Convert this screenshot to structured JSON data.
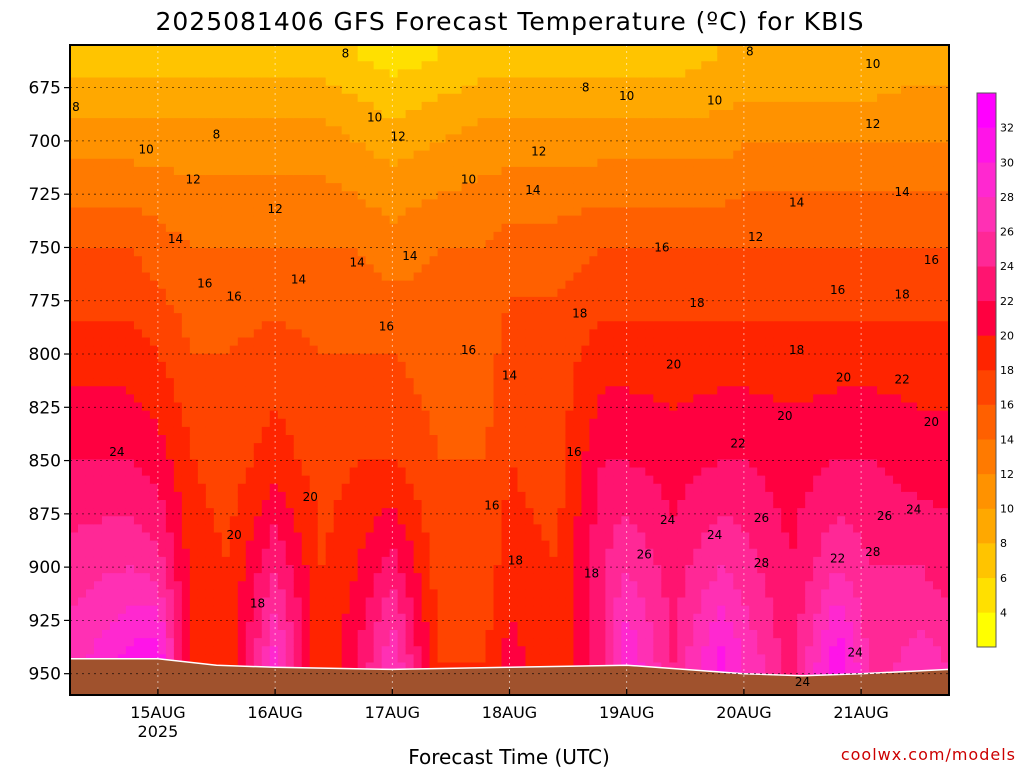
{
  "chart_data": {
    "type": "heatmap",
    "title": "2025081406 GFS Forecast Temperature (ºC) for KBIS",
    "xlabel": "Forecast Time (UTC)",
    "ylabel": "",
    "credit": "coolwx.com/models",
    "x_ticks": [
      {
        "label": "15AUG",
        "sub": "2025",
        "day": 1
      },
      {
        "label": "16AUG",
        "sub": "",
        "day": 2
      },
      {
        "label": "17AUG",
        "sub": "",
        "day": 3
      },
      {
        "label": "18AUG",
        "sub": "",
        "day": 4
      },
      {
        "label": "19AUG",
        "sub": "",
        "day": 5
      },
      {
        "label": "20AUG",
        "sub": "",
        "day": 6
      },
      {
        "label": "21AUG",
        "sub": "",
        "day": 7
      }
    ],
    "xlim_days": [
      0.25,
      7.75
    ],
    "y_ticks": [
      "675",
      "700",
      "725",
      "750",
      "775",
      "800",
      "825",
      "850",
      "875",
      "900",
      "925",
      "950"
    ],
    "ylim_hpa": [
      655,
      960
    ],
    "y_reversed": true,
    "colorbar": {
      "min": 2,
      "max": 34,
      "step": 2,
      "labels": [
        "4",
        "6",
        "8",
        "10",
        "12",
        "14",
        "16",
        "18",
        "20",
        "22",
        "24",
        "26",
        "28",
        "30",
        "32"
      ],
      "colors": [
        "#ffff00",
        "#ffe000",
        "#ffc400",
        "#ffa800",
        "#ff9200",
        "#ff7a00",
        "#ff6000",
        "#ff4400",
        "#ff2400",
        "#ff0040",
        "#ff1470",
        "#ff2896",
        "#ff30b4",
        "#ff28d0",
        "#ff14e8",
        "#ff00ff"
      ]
    },
    "ground_color": "#a0522d",
    "grid": true,
    "contour_interval": 2,
    "temperature_profiles": [
      {
        "day": 0.25,
        "t": [
          {
            "p": 660,
            "v": 7
          },
          {
            "p": 700,
            "v": 11
          },
          {
            "p": 750,
            "v": 16
          },
          {
            "p": 800,
            "v": 19
          },
          {
            "p": 850,
            "v": 22
          },
          {
            "p": 900,
            "v": 25
          },
          {
            "p": 945,
            "v": 27
          }
        ]
      },
      {
        "day": 0.75,
        "t": [
          {
            "p": 660,
            "v": 7
          },
          {
            "p": 700,
            "v": 11
          },
          {
            "p": 750,
            "v": 16
          },
          {
            "p": 800,
            "v": 19
          },
          {
            "p": 850,
            "v": 22
          },
          {
            "p": 900,
            "v": 26
          },
          {
            "p": 945,
            "v": 31
          }
        ]
      },
      {
        "day": 1.0,
        "t": [
          {
            "p": 660,
            "v": 7
          },
          {
            "p": 700,
            "v": 11
          },
          {
            "p": 750,
            "v": 15
          },
          {
            "p": 800,
            "v": 18
          },
          {
            "p": 850,
            "v": 21
          },
          {
            "p": 900,
            "v": 25
          },
          {
            "p": 945,
            "v": 32
          }
        ]
      },
      {
        "day": 1.3,
        "t": [
          {
            "p": 660,
            "v": 7
          },
          {
            "p": 700,
            "v": 11
          },
          {
            "p": 750,
            "v": 14
          },
          {
            "p": 800,
            "v": 16
          },
          {
            "p": 850,
            "v": 18
          },
          {
            "p": 900,
            "v": 19
          },
          {
            "p": 945,
            "v": 18
          }
        ]
      },
      {
        "day": 1.6,
        "t": [
          {
            "p": 660,
            "v": 7
          },
          {
            "p": 700,
            "v": 11
          },
          {
            "p": 750,
            "v": 14
          },
          {
            "p": 800,
            "v": 16
          },
          {
            "p": 850,
            "v": 17
          },
          {
            "p": 900,
            "v": 18
          },
          {
            "p": 945,
            "v": 18
          }
        ]
      },
      {
        "day": 2.0,
        "t": [
          {
            "p": 660,
            "v": 7
          },
          {
            "p": 700,
            "v": 11
          },
          {
            "p": 750,
            "v": 14
          },
          {
            "p": 800,
            "v": 17
          },
          {
            "p": 850,
            "v": 19
          },
          {
            "p": 900,
            "v": 24
          },
          {
            "p": 945,
            "v": 29
          }
        ]
      },
      {
        "day": 2.4,
        "t": [
          {
            "p": 660,
            "v": 7
          },
          {
            "p": 700,
            "v": 11
          },
          {
            "p": 750,
            "v": 14
          },
          {
            "p": 800,
            "v": 16
          },
          {
            "p": 850,
            "v": 17
          },
          {
            "p": 900,
            "v": 18
          },
          {
            "p": 945,
            "v": 18
          }
        ]
      },
      {
        "day": 2.7,
        "t": [
          {
            "p": 660,
            "v": 6
          },
          {
            "p": 700,
            "v": 10
          },
          {
            "p": 750,
            "v": 14
          },
          {
            "p": 800,
            "v": 16
          },
          {
            "p": 850,
            "v": 18
          },
          {
            "p": 900,
            "v": 20
          },
          {
            "p": 945,
            "v": 22
          }
        ]
      },
      {
        "day": 3.0,
        "t": [
          {
            "p": 660,
            "v": 5
          },
          {
            "p": 700,
            "v": 9
          },
          {
            "p": 750,
            "v": 13
          },
          {
            "p": 800,
            "v": 16
          },
          {
            "p": 850,
            "v": 18
          },
          {
            "p": 900,
            "v": 23
          },
          {
            "p": 945,
            "v": 28
          }
        ]
      },
      {
        "day": 3.4,
        "t": [
          {
            "p": 660,
            "v": 6
          },
          {
            "p": 700,
            "v": 10
          },
          {
            "p": 750,
            "v": 14
          },
          {
            "p": 800,
            "v": 15
          },
          {
            "p": 850,
            "v": 16
          },
          {
            "p": 900,
            "v": 17
          },
          {
            "p": 945,
            "v": 18
          }
        ]
      },
      {
        "day": 3.8,
        "t": [
          {
            "p": 660,
            "v": 7
          },
          {
            "p": 700,
            "v": 11
          },
          {
            "p": 750,
            "v": 14
          },
          {
            "p": 800,
            "v": 15
          },
          {
            "p": 850,
            "v": 16
          },
          {
            "p": 900,
            "v": 17
          },
          {
            "p": 945,
            "v": 18
          }
        ]
      },
      {
        "day": 4.0,
        "t": [
          {
            "p": 660,
            "v": 7
          },
          {
            "p": 700,
            "v": 11
          },
          {
            "p": 750,
            "v": 15
          },
          {
            "p": 800,
            "v": 17
          },
          {
            "p": 850,
            "v": 18
          },
          {
            "p": 900,
            "v": 19
          },
          {
            "p": 945,
            "v": 21
          }
        ]
      },
      {
        "day": 4.4,
        "t": [
          {
            "p": 660,
            "v": 7
          },
          {
            "p": 700,
            "v": 11
          },
          {
            "p": 750,
            "v": 15
          },
          {
            "p": 800,
            "v": 17
          },
          {
            "p": 850,
            "v": 17
          },
          {
            "p": 900,
            "v": 18
          },
          {
            "p": 945,
            "v": 18
          }
        ]
      },
      {
        "day": 4.8,
        "t": [
          {
            "p": 660,
            "v": 7
          },
          {
            "p": 700,
            "v": 11
          },
          {
            "p": 750,
            "v": 16
          },
          {
            "p": 800,
            "v": 19
          },
          {
            "p": 850,
            "v": 22
          },
          {
            "p": 900,
            "v": 24
          },
          {
            "p": 945,
            "v": 24
          }
        ]
      },
      {
        "day": 5.0,
        "t": [
          {
            "p": 660,
            "v": 7
          },
          {
            "p": 700,
            "v": 11
          },
          {
            "p": 750,
            "v": 16
          },
          {
            "p": 800,
            "v": 19
          },
          {
            "p": 850,
            "v": 22
          },
          {
            "p": 900,
            "v": 26
          },
          {
            "p": 945,
            "v": 30
          }
        ]
      },
      {
        "day": 5.4,
        "t": [
          {
            "p": 660,
            "v": 7
          },
          {
            "p": 700,
            "v": 11
          },
          {
            "p": 750,
            "v": 16
          },
          {
            "p": 800,
            "v": 19
          },
          {
            "p": 850,
            "v": 21
          },
          {
            "p": 900,
            "v": 23
          },
          {
            "p": 945,
            "v": 24
          }
        ]
      },
      {
        "day": 5.8,
        "t": [
          {
            "p": 660,
            "v": 8
          },
          {
            "p": 700,
            "v": 11
          },
          {
            "p": 750,
            "v": 16
          },
          {
            "p": 800,
            "v": 19
          },
          {
            "p": 850,
            "v": 22
          },
          {
            "p": 900,
            "v": 26
          },
          {
            "p": 945,
            "v": 31
          }
        ]
      },
      {
        "day": 6.0,
        "t": [
          {
            "p": 660,
            "v": 8
          },
          {
            "p": 700,
            "v": 12
          },
          {
            "p": 750,
            "v": 16
          },
          {
            "p": 800,
            "v": 19
          },
          {
            "p": 850,
            "v": 22
          },
          {
            "p": 900,
            "v": 25
          },
          {
            "p": 945,
            "v": 28
          }
        ]
      },
      {
        "day": 6.4,
        "t": [
          {
            "p": 660,
            "v": 8
          },
          {
            "p": 700,
            "v": 12
          },
          {
            "p": 750,
            "v": 16
          },
          {
            "p": 800,
            "v": 19
          },
          {
            "p": 850,
            "v": 21
          },
          {
            "p": 900,
            "v": 22
          },
          {
            "p": 945,
            "v": 23
          }
        ]
      },
      {
        "day": 6.8,
        "t": [
          {
            "p": 660,
            "v": 8
          },
          {
            "p": 700,
            "v": 12
          },
          {
            "p": 750,
            "v": 16
          },
          {
            "p": 800,
            "v": 19
          },
          {
            "p": 850,
            "v": 22
          },
          {
            "p": 900,
            "v": 26
          },
          {
            "p": 945,
            "v": 32
          }
        ]
      },
      {
        "day": 7.1,
        "t": [
          {
            "p": 660,
            "v": 8
          },
          {
            "p": 700,
            "v": 12
          },
          {
            "p": 750,
            "v": 16
          },
          {
            "p": 800,
            "v": 19
          },
          {
            "p": 850,
            "v": 22
          },
          {
            "p": 900,
            "v": 24
          },
          {
            "p": 945,
            "v": 25
          }
        ]
      },
      {
        "day": 7.5,
        "t": [
          {
            "p": 660,
            "v": 9
          },
          {
            "p": 700,
            "v": 12
          },
          {
            "p": 750,
            "v": 16
          },
          {
            "p": 800,
            "v": 19
          },
          {
            "p": 850,
            "v": 21
          },
          {
            "p": 900,
            "v": 24
          },
          {
            "p": 945,
            "v": 27
          }
        ]
      },
      {
        "day": 7.75,
        "t": [
          {
            "p": 660,
            "v": 9
          },
          {
            "p": 700,
            "v": 12
          },
          {
            "p": 750,
            "v": 16
          },
          {
            "p": 800,
            "v": 19
          },
          {
            "p": 850,
            "v": 21
          },
          {
            "p": 900,
            "v": 23
          },
          {
            "p": 945,
            "v": 26
          }
        ]
      }
    ],
    "surface_pressure_hpa": [
      {
        "day": 0.25,
        "p": 943
      },
      {
        "day": 1.0,
        "p": 943
      },
      {
        "day": 1.5,
        "p": 946
      },
      {
        "day": 2.0,
        "p": 947
      },
      {
        "day": 3.0,
        "p": 948
      },
      {
        "day": 4.0,
        "p": 947
      },
      {
        "day": 5.0,
        "p": 946
      },
      {
        "day": 6.0,
        "p": 950
      },
      {
        "day": 6.5,
        "p": 951
      },
      {
        "day": 7.0,
        "p": 950
      },
      {
        "day": 7.75,
        "p": 948
      }
    ],
    "contour_labels": [
      {
        "text": "8",
        "day": 0.3,
        "p": 684
      },
      {
        "text": "8",
        "day": 1.5,
        "p": 697
      },
      {
        "text": "8",
        "day": 2.6,
        "p": 659
      },
      {
        "text": "8",
        "day": 4.65,
        "p": 675
      },
      {
        "text": "8",
        "day": 6.05,
        "p": 658
      },
      {
        "text": "10",
        "day": 0.9,
        "p": 704
      },
      {
        "text": "10",
        "day": 2.85,
        "p": 689
      },
      {
        "text": "10",
        "day": 3.65,
        "p": 718
      },
      {
        "text": "10",
        "day": 5.0,
        "p": 679
      },
      {
        "text": "10",
        "day": 5.75,
        "p": 681
      },
      {
        "text": "10",
        "day": 7.1,
        "p": 664
      },
      {
        "text": "12",
        "day": 1.3,
        "p": 718
      },
      {
        "text": "12",
        "day": 2.0,
        "p": 732
      },
      {
        "text": "12",
        "day": 3.05,
        "p": 698
      },
      {
        "text": "12",
        "day": 4.25,
        "p": 705
      },
      {
        "text": "12",
        "day": 6.1,
        "p": 745
      },
      {
        "text": "12",
        "day": 7.1,
        "p": 692
      },
      {
        "text": "14",
        "day": 1.15,
        "p": 746
      },
      {
        "text": "14",
        "day": 2.2,
        "p": 765
      },
      {
        "text": "14",
        "day": 2.7,
        "p": 757
      },
      {
        "text": "14",
        "day": 3.15,
        "p": 754
      },
      {
        "text": "14",
        "day": 4.2,
        "p": 723
      },
      {
        "text": "14",
        "day": 4.0,
        "p": 810
      },
      {
        "text": "14",
        "day": 6.45,
        "p": 729
      },
      {
        "text": "14",
        "day": 7.35,
        "p": 724
      },
      {
        "text": "16",
        "day": 1.4,
        "p": 767
      },
      {
        "text": "16",
        "day": 1.65,
        "p": 773
      },
      {
        "text": "16",
        "day": 2.95,
        "p": 787
      },
      {
        "text": "16",
        "day": 3.65,
        "p": 798
      },
      {
        "text": "16",
        "day": 4.55,
        "p": 846
      },
      {
        "text": "16",
        "day": 3.85,
        "p": 871
      },
      {
        "text": "16",
        "day": 5.3,
        "p": 750
      },
      {
        "text": "16",
        "day": 6.8,
        "p": 770
      },
      {
        "text": "16",
        "day": 7.6,
        "p": 756
      },
      {
        "text": "18",
        "day": 1.85,
        "p": 917
      },
      {
        "text": "18",
        "day": 4.05,
        "p": 897
      },
      {
        "text": "18",
        "day": 4.7,
        "p": 903
      },
      {
        "text": "18",
        "day": 4.6,
        "p": 781
      },
      {
        "text": "18",
        "day": 5.6,
        "p": 776
      },
      {
        "text": "18",
        "day": 6.45,
        "p": 798
      },
      {
        "text": "18",
        "day": 7.35,
        "p": 772
      },
      {
        "text": "20",
        "day": 1.65,
        "p": 885
      },
      {
        "text": "20",
        "day": 2.3,
        "p": 867
      },
      {
        "text": "20",
        "day": 5.4,
        "p": 805
      },
      {
        "text": "20",
        "day": 6.35,
        "p": 829
      },
      {
        "text": "20",
        "day": 6.85,
        "p": 811
      },
      {
        "text": "20",
        "day": 7.6,
        "p": 832
      },
      {
        "text": "22",
        "day": 5.95,
        "p": 842
      },
      {
        "text": "22",
        "day": 6.8,
        "p": 896
      },
      {
        "text": "22",
        "day": 7.35,
        "p": 812
      },
      {
        "text": "24",
        "day": 0.65,
        "p": 846
      },
      {
        "text": "24",
        "day": 5.35,
        "p": 878
      },
      {
        "text": "24",
        "day": 5.75,
        "p": 885
      },
      {
        "text": "24",
        "day": 6.5,
        "p": 954
      },
      {
        "text": "24",
        "day": 6.95,
        "p": 940
      },
      {
        "text": "24",
        "day": 7.45,
        "p": 873
      },
      {
        "text": "26",
        "day": 5.15,
        "p": 894
      },
      {
        "text": "26",
        "day": 6.15,
        "p": 877
      },
      {
        "text": "26",
        "day": 7.2,
        "p": 876
      },
      {
        "text": "28",
        "day": 6.15,
        "p": 898
      },
      {
        "text": "28",
        "day": 7.1,
        "p": 893
      }
    ]
  }
}
